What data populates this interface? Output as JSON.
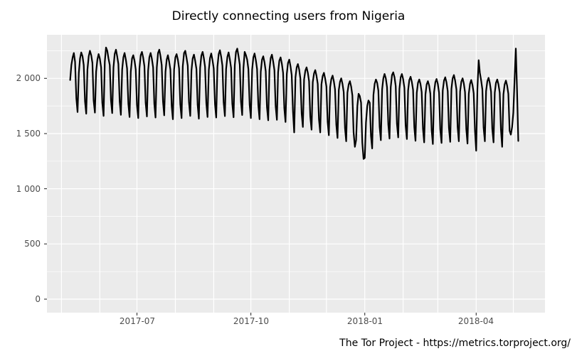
{
  "page": {
    "background": "#FFFFFF"
  },
  "chart_data": {
    "type": "line",
    "title": "Directly connecting users from Nigeria",
    "source": "The Tor Project - https://metrics.torproject.org/",
    "xlabel": "",
    "ylabel": "",
    "panel_bg": "#EBEBEB",
    "grid_color": "#FFFFFF",
    "tick_color": "#333333",
    "tick_label_color": "#4D4D4D",
    "legend": "none",
    "grid": "on",
    "ylim": [
      -122,
      2407
    ],
    "x_axis_range": [
      "2017-04-19",
      "2018-05-26"
    ],
    "y_ticks": [
      {
        "value": 0,
        "label": "0"
      },
      {
        "value": 500,
        "label": "500"
      },
      {
        "value": 1000,
        "label": "1 000"
      },
      {
        "value": 1500,
        "label": "1 500"
      },
      {
        "value": 2000,
        "label": "2 000"
      }
    ],
    "y_minor": [
      250,
      750,
      1250,
      1750,
      2250
    ],
    "x_ticks": [
      {
        "date": "2017-07-01",
        "label": "2017-07"
      },
      {
        "date": "2017-10-01",
        "label": "2017-10"
      },
      {
        "date": "2018-01-01",
        "label": "2018-01"
      },
      {
        "date": "2018-04-01",
        "label": "2018-04"
      }
    ],
    "x_grid_months": [
      "2017-05-01",
      "2017-06-01",
      "2017-07-01",
      "2017-08-01",
      "2017-09-01",
      "2017-10-01",
      "2017-11-01",
      "2017-12-01",
      "2018-01-01",
      "2018-02-01",
      "2018-03-01",
      "2018-04-01",
      "2018-05-01"
    ],
    "series": [
      {
        "name": "directly-connecting-users",
        "color": "#000000",
        "start_date": "2017-05-08",
        "frequency": "daily",
        "values": [
          1985,
          2120,
          2190,
          2230,
          2150,
          1820,
          1695,
          2050,
          2180,
          2235,
          2200,
          2120,
          1790,
          1680,
          2080,
          2200,
          2250,
          2210,
          2140,
          1800,
          1690,
          2060,
          2170,
          2220,
          2180,
          2100,
          1780,
          1660,
          2150,
          2280,
          2250,
          2180,
          2120,
          1800,
          1685,
          2100,
          2220,
          2260,
          2200,
          2130,
          1790,
          1670,
          2080,
          2190,
          2230,
          2170,
          2090,
          1770,
          1650,
          2060,
          2180,
          2210,
          2160,
          2080,
          1760,
          1640,
          2090,
          2210,
          2240,
          2190,
          2110,
          1780,
          1655,
          2070,
          2190,
          2230,
          2180,
          2100,
          1770,
          1645,
          2100,
          2230,
          2260,
          2200,
          2120,
          1790,
          1665,
          2060,
          2170,
          2210,
          2150,
          2080,
          1750,
          1630,
          2080,
          2190,
          2220,
          2170,
          2090,
          1765,
          1640,
          2110,
          2230,
          2250,
          2190,
          2115,
          1785,
          1660,
          2070,
          2180,
          2215,
          2160,
          2085,
          1760,
          1635,
          2095,
          2205,
          2240,
          2185,
          2105,
          1775,
          1650,
          2075,
          2185,
          2225,
          2165,
          2090,
          1765,
          1645,
          2105,
          2220,
          2255,
          2195,
          2115,
          1785,
          1658,
          2085,
          2195,
          2235,
          2175,
          2095,
          1770,
          1648,
          2120,
          2240,
          2270,
          2205,
          2125,
          1790,
          1668,
          2095,
          2240,
          2210,
          2170,
          2085,
          1760,
          1640,
          2080,
          2190,
          2225,
          2165,
          2085,
          1755,
          1630,
          2060,
          2170,
          2200,
          2145,
          2065,
          1740,
          1620,
          2075,
          2185,
          2215,
          2155,
          2075,
          1750,
          1625,
          2055,
          2160,
          2190,
          2135,
          2050,
          1730,
          1605,
          2040,
          2140,
          2170,
          2110,
          2030,
          1700,
          1510,
          2010,
          2100,
          2130,
          2080,
          2000,
          1680,
          1560,
          1990,
          2070,
          2100,
          2050,
          1975,
          1655,
          1535,
          1965,
          2045,
          2075,
          2025,
          1950,
          1630,
          1510,
          1945,
          2020,
          2050,
          2000,
          1925,
          1605,
          1485,
          1920,
          1995,
          2025,
          1975,
          1900,
          1580,
          1460,
          1895,
          1970,
          2000,
          1950,
          1875,
          1550,
          1430,
          1870,
          1945,
          1975,
          1925,
          1845,
          1510,
          1380,
          1440,
          1750,
          1860,
          1840,
          1780,
          1420,
          1270,
          1280,
          1600,
          1750,
          1800,
          1780,
          1480,
          1365,
          1850,
          1950,
          1990,
          1960,
          1890,
          1560,
          1440,
          1900,
          2000,
          2040,
          2000,
          1920,
          1580,
          1455,
          1920,
          2030,
          2055,
          2010,
          1930,
          1590,
          1465,
          1905,
          2010,
          2040,
          1995,
          1915,
          1575,
          1450,
          1890,
          1985,
          2015,
          1970,
          1895,
          1560,
          1435,
          1870,
          1960,
          1990,
          1950,
          1875,
          1545,
          1420,
          1855,
          1945,
          1975,
          1935,
          1860,
          1530,
          1405,
          1875,
          1965,
          1995,
          1950,
          1870,
          1540,
          1415,
          1890,
          1980,
          2010,
          1965,
          1885,
          1550,
          1425,
          1905,
          2000,
          2030,
          1980,
          1900,
          1560,
          1430,
          1880,
          1970,
          2000,
          1955,
          1875,
          1540,
          1410,
          1860,
          1950,
          1985,
          1940,
          1865,
          1525,
          1345,
          1900,
          2165,
          2050,
          1980,
          1900,
          1555,
          1430,
          1885,
          1975,
          2005,
          1960,
          1880,
          1545,
          1420,
          1870,
          1960,
          1990,
          1945,
          1870,
          1535,
          1380,
          1855,
          1945,
          1980,
          1935,
          1860,
          1525,
          1490,
          1560,
          1690,
          1980,
          2270,
          1900,
          1433
        ]
      }
    ]
  }
}
